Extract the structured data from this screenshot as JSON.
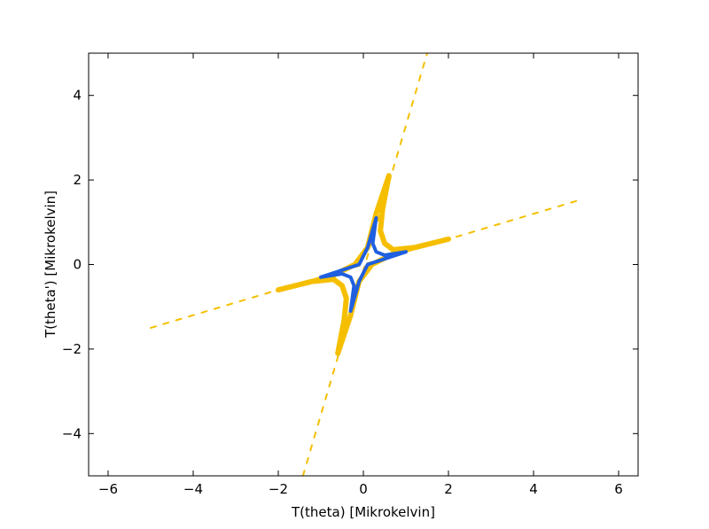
{
  "chart_data": {
    "type": "line",
    "xlabel": "T(theta) [Mikrokelvin]",
    "ylabel": "T(theta') [Mikrokelvin]",
    "xlim": [
      -6.458,
      6.458
    ],
    "ylim": [
      -5,
      5
    ],
    "xticks": [
      {
        "value": -6,
        "label": "−6"
      },
      {
        "value": -4,
        "label": "−4"
      },
      {
        "value": -2,
        "label": "−2"
      },
      0,
      2,
      4,
      6
    ],
    "yticks": [
      {
        "value": -4,
        "label": "−4"
      },
      {
        "value": -2,
        "label": "−2"
      },
      0,
      2,
      4
    ],
    "series": [
      {
        "color": "#f5bf00",
        "linewidth": 2,
        "dashed": true,
        "x": [
          -5,
          5
        ],
        "values": [
          -1.5,
          1.5
        ]
      },
      {
        "color": "#f5bf00",
        "linewidth": 2,
        "dashed": true,
        "x": [
          -1.42,
          1.5
        ],
        "values": [
          -5,
          5
        ]
      },
      {
        "color": "#f5bf00",
        "linewidth": 6,
        "dashed": false,
        "x": [
          2,
          1.2,
          0.7,
          0.5,
          0.4,
          0.45,
          0.6,
          0.3,
          0.1,
          -0.2,
          -0.8,
          -2,
          -1.2,
          -0.7,
          -0.5,
          -0.4,
          -0.45,
          -0.6,
          -0.3,
          -0.1,
          0.2,
          0.8,
          2
        ],
        "values": [
          0.6,
          0.4,
          0.35,
          0.5,
          0.8,
          1.3,
          2.1,
          1.2,
          0.4,
          0,
          -0.3,
          -0.6,
          -0.4,
          -0.35,
          -0.5,
          -0.8,
          -1.3,
          -2.1,
          -1.2,
          -0.4,
          0,
          0.3,
          0.6
        ]
      },
      {
        "color": "#1f5fe0",
        "linewidth": 4,
        "dashed": false,
        "x": [
          1,
          0.5,
          0.3,
          0.22,
          0.3,
          0.1,
          -0.1,
          -0.4,
          -1,
          -0.5,
          -0.3,
          -0.22,
          -0.3,
          -0.1,
          0.1,
          0.4,
          1
        ],
        "values": [
          0.3,
          0.22,
          0.3,
          0.5,
          1.1,
          0.4,
          0,
          -0.1,
          -0.3,
          -0.22,
          -0.3,
          -0.5,
          -1.1,
          -0.4,
          0,
          0.1,
          0.3
        ]
      }
    ]
  }
}
